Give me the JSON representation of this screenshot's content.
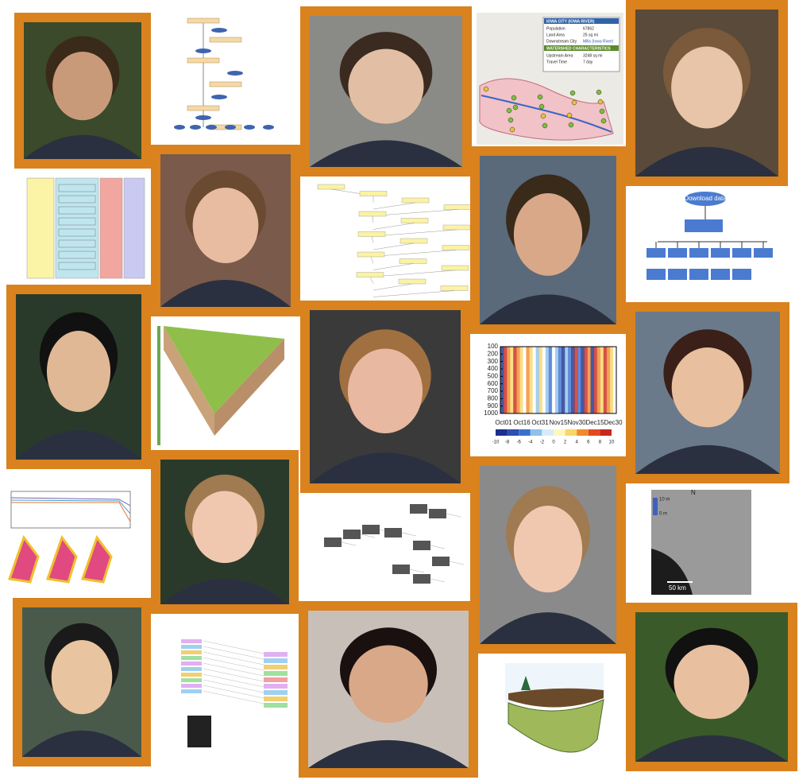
{
  "map_popup": {
    "title": "IOWA CITY (IOWA RIVER)",
    "rows": [
      [
        "Population",
        "67862"
      ],
      [
        "Land Area",
        "25 sq mi"
      ],
      [
        "Downstream City",
        "Mills (Iowa River)"
      ]
    ],
    "section": "WATERSHED CHARACTERISTICS",
    "rows2": [
      [
        "Upstream Area",
        "3248 sq mi"
      ],
      [
        "Travel Time",
        "7 day"
      ]
    ]
  },
  "workflow_diagram": {
    "title": "Download data"
  },
  "heatmap": {
    "yticks": [
      100,
      200,
      300,
      400,
      500,
      600,
      700,
      800,
      900,
      1000
    ],
    "xticks": [
      "Oct01",
      "Oct16",
      "Oct31",
      "Nov15",
      "Nov30",
      "Dec15",
      "Dec30"
    ],
    "colorbar_ticks": [
      -10,
      -8,
      -6,
      -4,
      -2,
      0,
      2,
      4,
      6,
      8,
      10
    ]
  },
  "satellite": {
    "north": "N",
    "depth_max": "10 m",
    "depth_min": "0 m",
    "scale": "50 km"
  }
}
